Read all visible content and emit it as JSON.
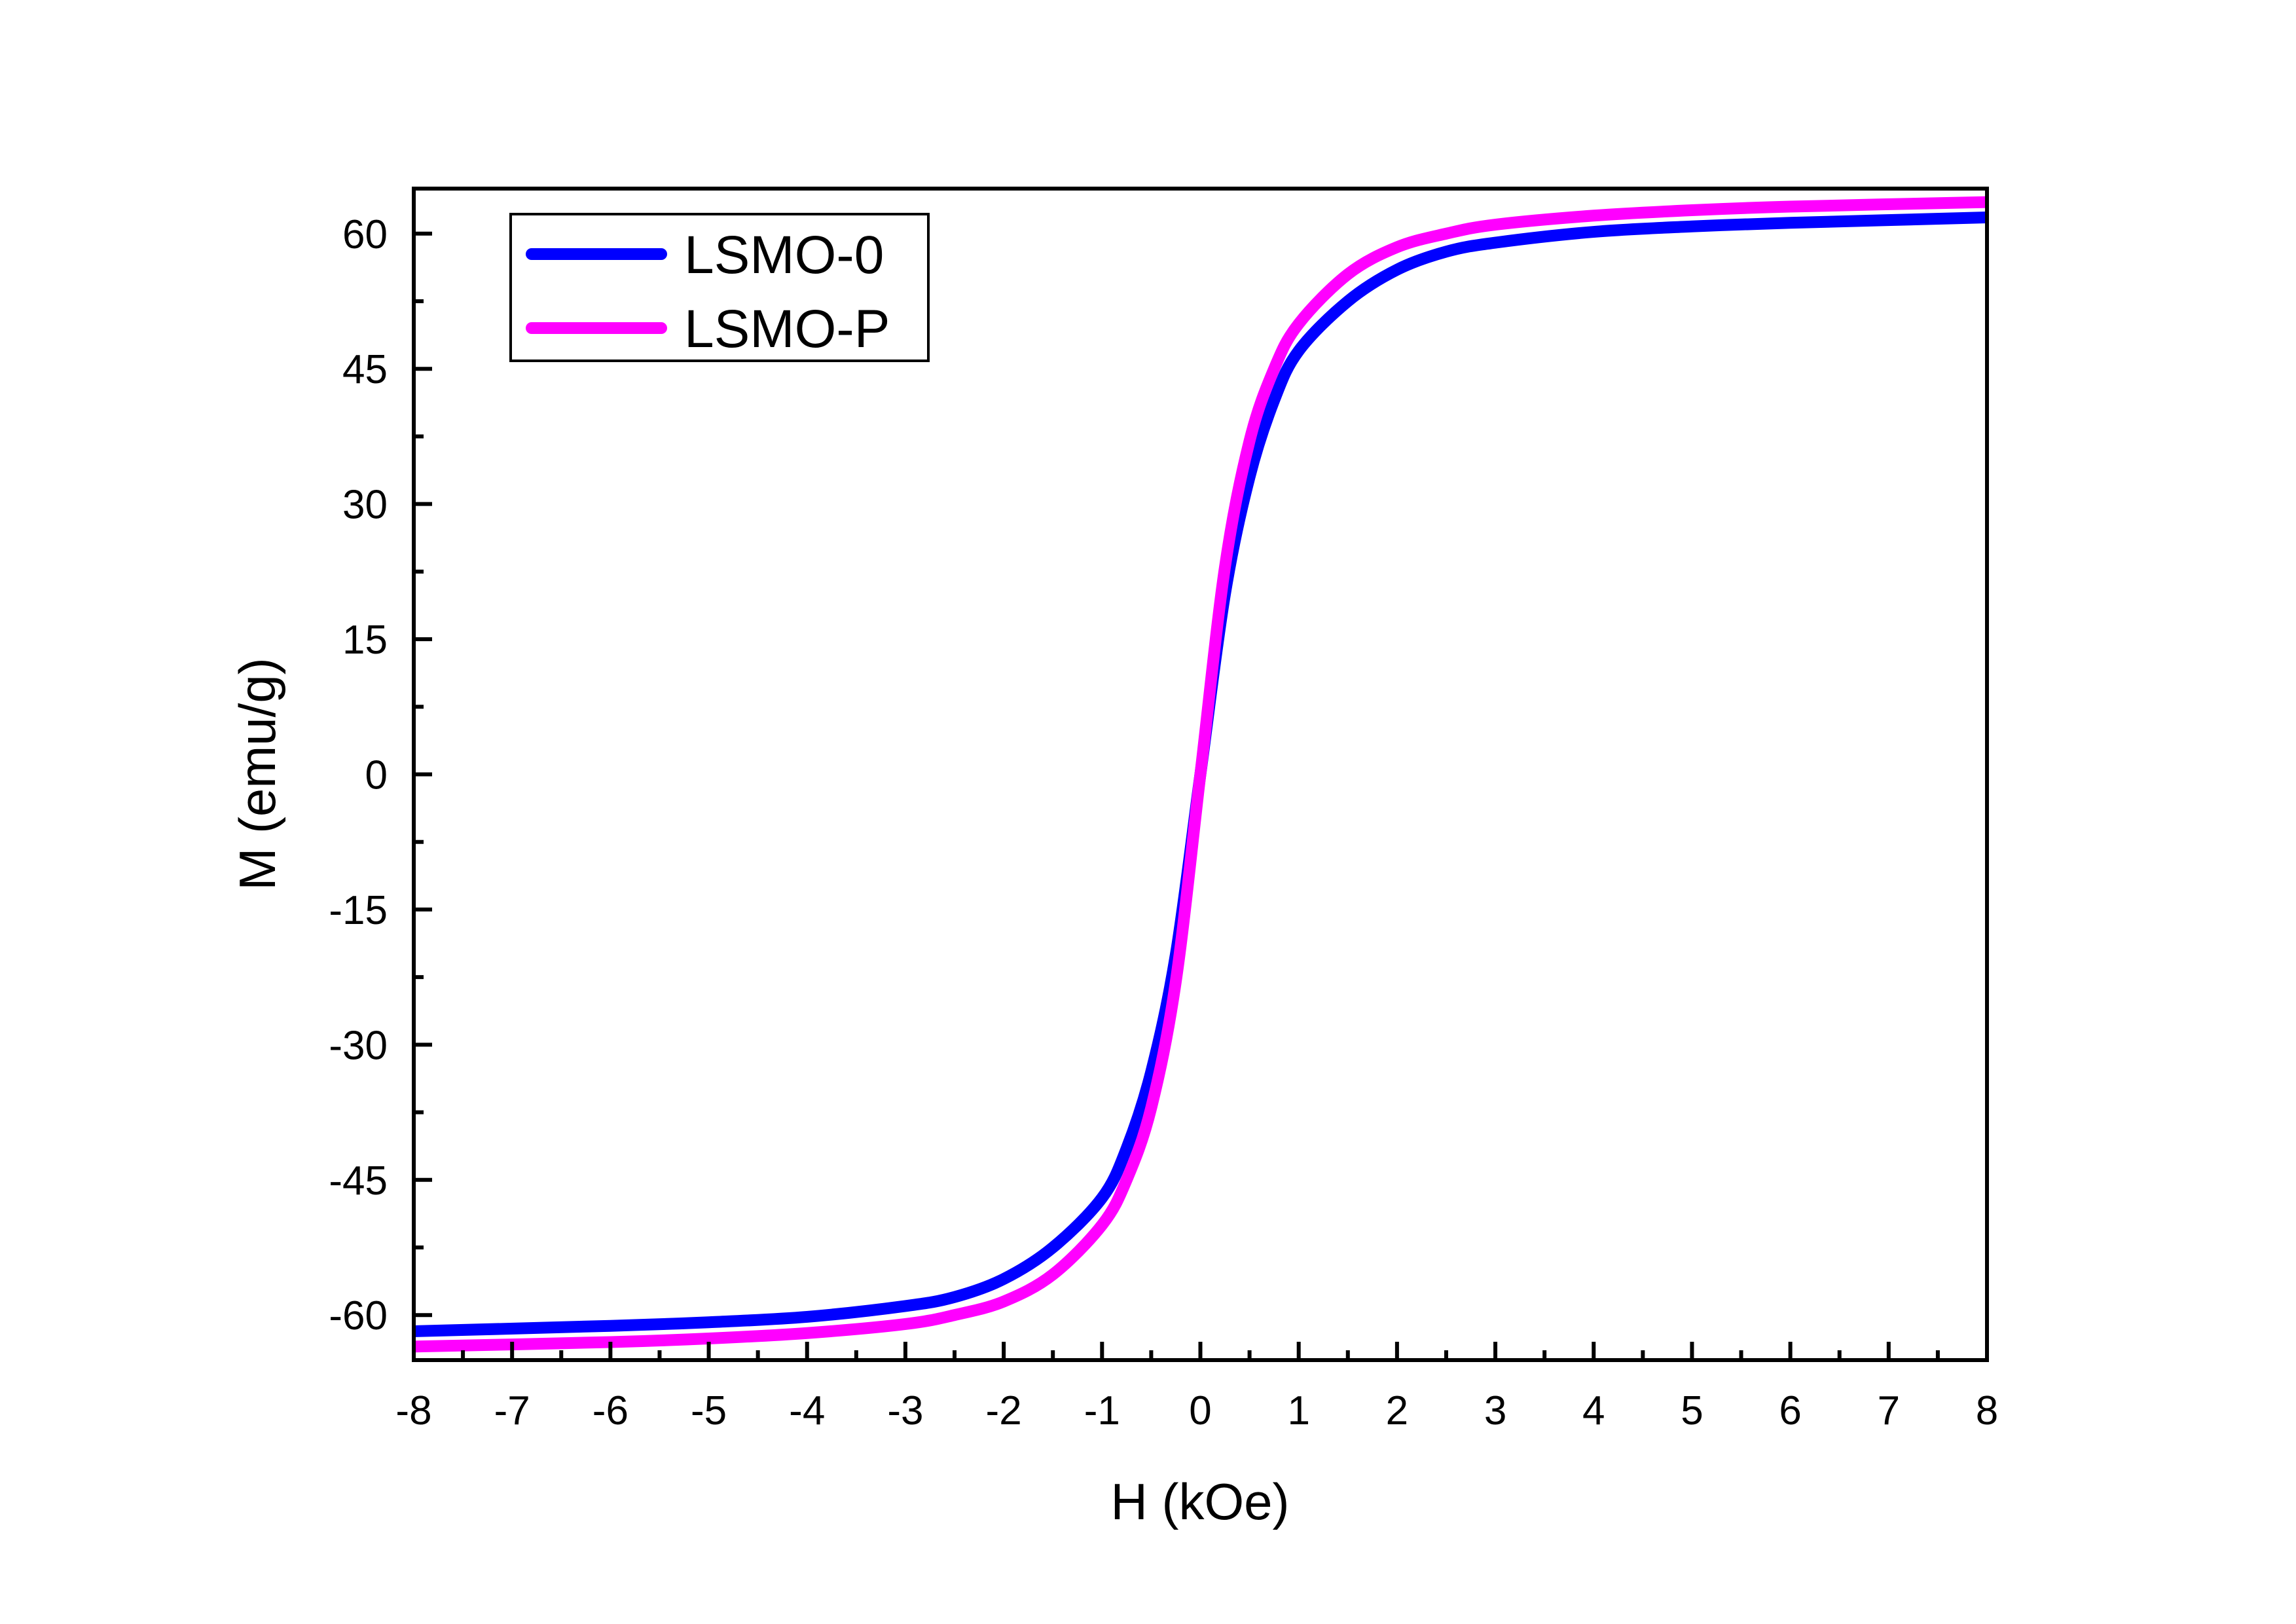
{
  "chart_data": {
    "type": "line",
    "title": "",
    "xlabel": "H (kOe)",
    "ylabel": "M (emu/g)",
    "xlim": [
      -8,
      8
    ],
    "ylim": [
      -65,
      65
    ],
    "xticks": [
      -8,
      -7,
      -6,
      -5,
      -4,
      -3,
      -2,
      -1,
      0,
      1,
      2,
      3,
      4,
      5,
      6,
      7,
      8
    ],
    "yticks": [
      -60,
      -45,
      -30,
      -15,
      0,
      15,
      30,
      45,
      60
    ],
    "grid": false,
    "legend_position": "top-left",
    "x": [
      -8,
      -6,
      -5,
      -4,
      -3,
      -2.5,
      -2,
      -1.5,
      -1,
      -0.75,
      -0.5,
      -0.25,
      0,
      0.25,
      0.5,
      0.75,
      1,
      1.5,
      2,
      2.5,
      3,
      4,
      5,
      6,
      8
    ],
    "series": [
      {
        "name": "LSMO-0",
        "color": "#0000ff",
        "values": [
          -61.8,
          -61.2,
          -60.8,
          -60.2,
          -59,
          -58,
          -56,
          -52.5,
          -47,
          -41.5,
          -33,
          -20,
          0,
          20,
          33,
          41.5,
          47,
          52.5,
          56,
          58,
          59,
          60.2,
          60.8,
          61.2,
          61.8
        ]
      },
      {
        "name": "LSMO-P",
        "color": "#ff00ff",
        "values": [
          -63.5,
          -63,
          -62.6,
          -62,
          -61,
          -60,
          -58.5,
          -55.5,
          -50,
          -45,
          -37,
          -23,
          0,
          23,
          37,
          45,
          50,
          55.5,
          58.5,
          60,
          61,
          62,
          62.6,
          63,
          63.5
        ]
      }
    ]
  }
}
